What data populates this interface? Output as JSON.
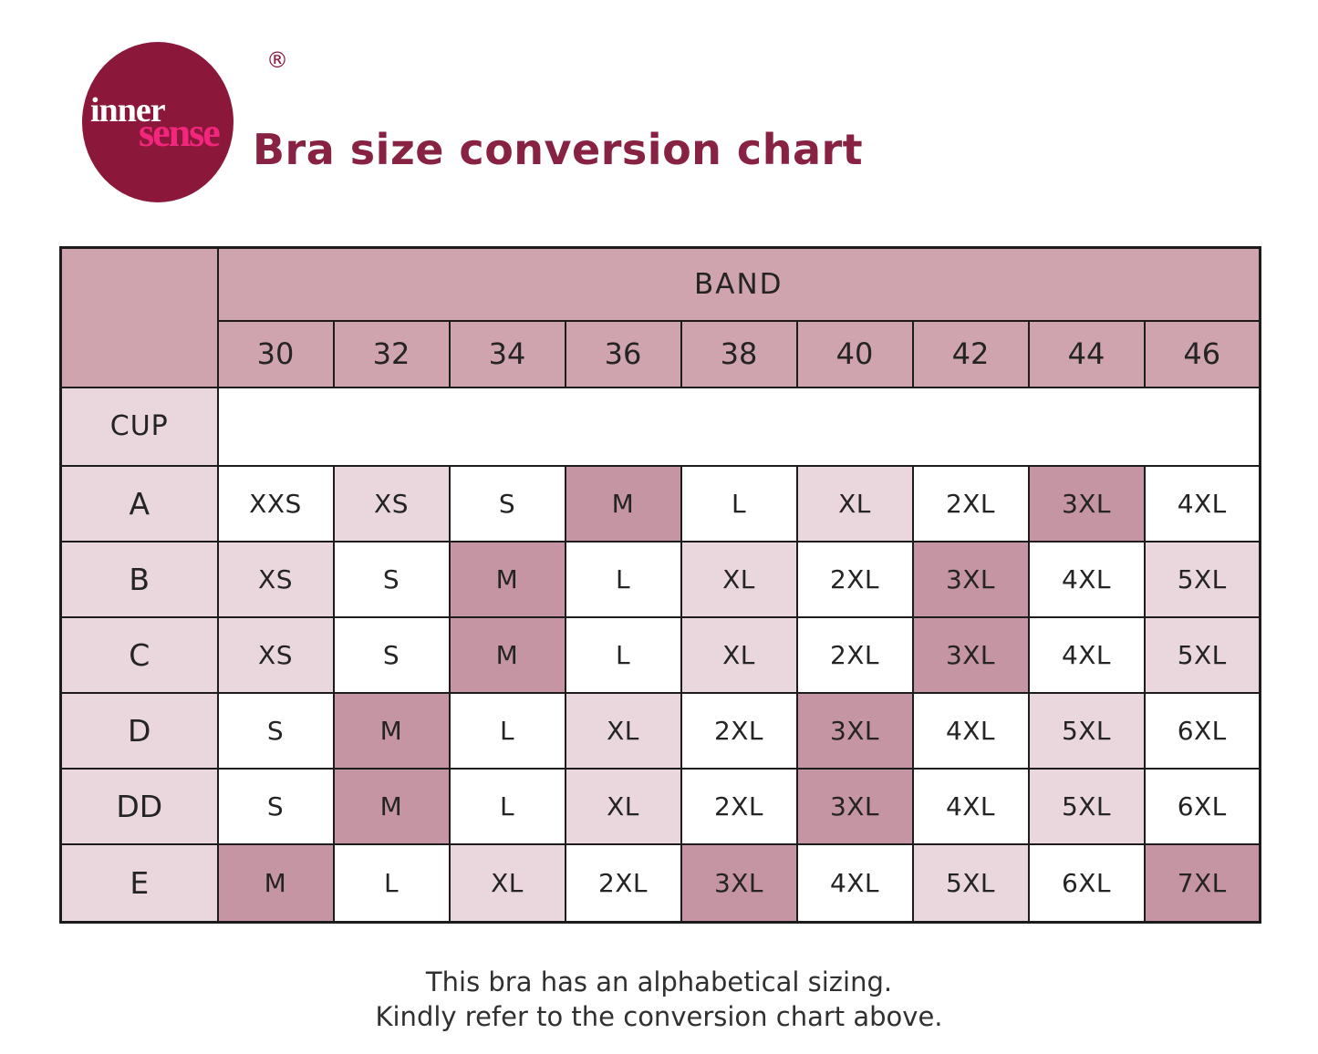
{
  "brand": {
    "name_part1": "inner",
    "name_part2": "sense",
    "registered_mark": "®"
  },
  "header": {
    "title": "Bra size conversion chart"
  },
  "table": {
    "band_header": "BAND",
    "cup_header": "CUP",
    "band_sizes": [
      "30",
      "32",
      "34",
      "36",
      "38",
      "40",
      "42",
      "44",
      "46"
    ],
    "rows": [
      {
        "cup": "A",
        "cells": [
          {
            "label": "XXS",
            "shade": "white"
          },
          {
            "label": "XS",
            "shade": "light"
          },
          {
            "label": "S",
            "shade": "white"
          },
          {
            "label": "M",
            "shade": "dark"
          },
          {
            "label": "L",
            "shade": "white"
          },
          {
            "label": "XL",
            "shade": "light"
          },
          {
            "label": "2XL",
            "shade": "white"
          },
          {
            "label": "3XL",
            "shade": "dark"
          },
          {
            "label": "4XL",
            "shade": "white"
          }
        ]
      },
      {
        "cup": "B",
        "cells": [
          {
            "label": "XS",
            "shade": "light"
          },
          {
            "label": "S",
            "shade": "white"
          },
          {
            "label": "M",
            "shade": "dark"
          },
          {
            "label": "L",
            "shade": "white"
          },
          {
            "label": "XL",
            "shade": "light"
          },
          {
            "label": "2XL",
            "shade": "white"
          },
          {
            "label": "3XL",
            "shade": "dark"
          },
          {
            "label": "4XL",
            "shade": "white"
          },
          {
            "label": "5XL",
            "shade": "light"
          }
        ]
      },
      {
        "cup": "C",
        "cells": [
          {
            "label": "XS",
            "shade": "light"
          },
          {
            "label": "S",
            "shade": "white"
          },
          {
            "label": "M",
            "shade": "dark"
          },
          {
            "label": "L",
            "shade": "white"
          },
          {
            "label": "XL",
            "shade": "light"
          },
          {
            "label": "2XL",
            "shade": "white"
          },
          {
            "label": "3XL",
            "shade": "dark"
          },
          {
            "label": "4XL",
            "shade": "white"
          },
          {
            "label": "5XL",
            "shade": "light"
          }
        ]
      },
      {
        "cup": "D",
        "cells": [
          {
            "label": "S",
            "shade": "white"
          },
          {
            "label": "M",
            "shade": "dark"
          },
          {
            "label": "L",
            "shade": "white"
          },
          {
            "label": "XL",
            "shade": "light"
          },
          {
            "label": "2XL",
            "shade": "white"
          },
          {
            "label": "3XL",
            "shade": "dark"
          },
          {
            "label": "4XL",
            "shade": "white"
          },
          {
            "label": "5XL",
            "shade": "light"
          },
          {
            "label": "6XL",
            "shade": "white"
          }
        ]
      },
      {
        "cup": "DD",
        "cells": [
          {
            "label": "S",
            "shade": "white"
          },
          {
            "label": "M",
            "shade": "dark"
          },
          {
            "label": "L",
            "shade": "white"
          },
          {
            "label": "XL",
            "shade": "light"
          },
          {
            "label": "2XL",
            "shade": "white"
          },
          {
            "label": "3XL",
            "shade": "dark"
          },
          {
            "label": "4XL",
            "shade": "white"
          },
          {
            "label": "5XL",
            "shade": "light"
          },
          {
            "label": "6XL",
            "shade": "white"
          }
        ]
      },
      {
        "cup": "E",
        "cells": [
          {
            "label": "M",
            "shade": "dark"
          },
          {
            "label": "L",
            "shade": "white"
          },
          {
            "label": "XL",
            "shade": "light"
          },
          {
            "label": "2XL",
            "shade": "white"
          },
          {
            "label": "3XL",
            "shade": "dark"
          },
          {
            "label": "4XL",
            "shade": "white"
          },
          {
            "label": "5XL",
            "shade": "light"
          },
          {
            "label": "6XL",
            "shade": "white"
          },
          {
            "label": "7XL",
            "shade": "dark"
          }
        ]
      }
    ]
  },
  "footer": {
    "line1": "This bra has an alphabetical sizing.",
    "line2": "Kindly refer to the conversion chart above."
  },
  "colors": {
    "logo_circle": "#8b173a",
    "logo_sense_pink": "#f2267c",
    "title_maroon": "#872242",
    "table_header_mauve": "#d0a4ae",
    "table_diagonal_mauve": "#c695a3",
    "table_light_pink": "#ead7dd",
    "table_border": "#1c1c1c"
  },
  "chart_data": {
    "type": "table",
    "title": "Bra size conversion chart",
    "columns": [
      "CUP \\ BAND",
      "30",
      "32",
      "34",
      "36",
      "38",
      "40",
      "42",
      "44",
      "46"
    ],
    "rows": [
      [
        "A",
        "XXS",
        "XS",
        "S",
        "M",
        "L",
        "XL",
        "2XL",
        "3XL",
        "4XL"
      ],
      [
        "B",
        "XS",
        "S",
        "M",
        "L",
        "XL",
        "2XL",
        "3XL",
        "4XL",
        "5XL"
      ],
      [
        "C",
        "XS",
        "S",
        "M",
        "L",
        "XL",
        "2XL",
        "3XL",
        "4XL",
        "5XL"
      ],
      [
        "D",
        "S",
        "M",
        "L",
        "XL",
        "2XL",
        "3XL",
        "4XL",
        "5XL",
        "6XL"
      ],
      [
        "DD",
        "S",
        "M",
        "L",
        "XL",
        "2XL",
        "3XL",
        "4XL",
        "5XL",
        "6XL"
      ],
      [
        "E",
        "M",
        "L",
        "XL",
        "2XL",
        "3XL",
        "4XL",
        "5XL",
        "6XL",
        "7XL"
      ]
    ],
    "notes": [
      "This bra has an alphabetical sizing.",
      "Kindly refer to the conversion chart above."
    ]
  }
}
